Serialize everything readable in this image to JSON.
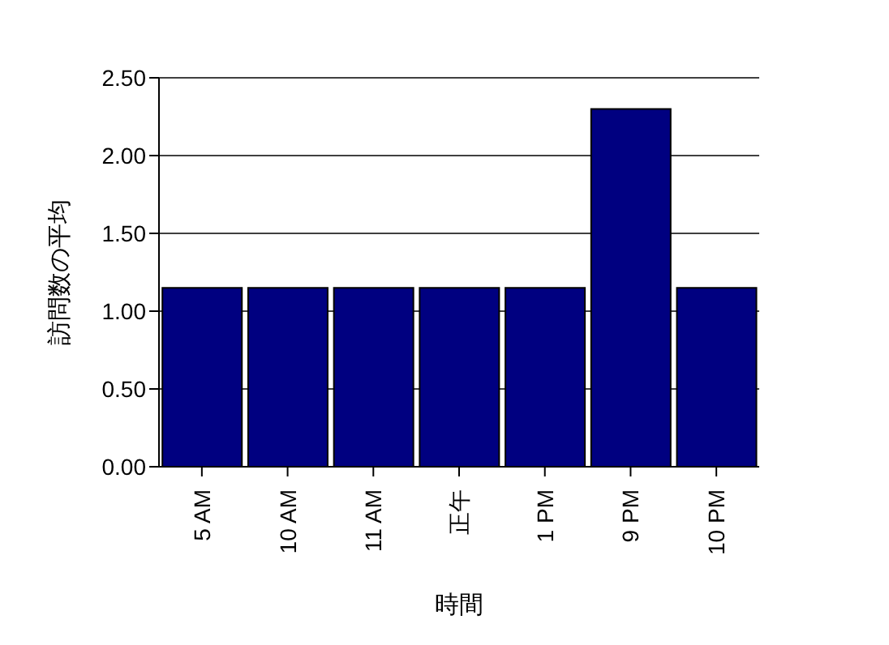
{
  "chart_data": {
    "type": "bar",
    "xlabel": "時間",
    "ylabel": "訪問数の平均",
    "categories": [
      "5 AM",
      "10 AM",
      "11 AM",
      "正午",
      "1 PM",
      "9 PM",
      "10 PM"
    ],
    "values": [
      1.15,
      1.15,
      1.15,
      1.15,
      1.15,
      2.3,
      1.15
    ],
    "color": "#000080",
    "ylim": [
      0,
      2.5
    ],
    "yticks": [
      {
        "value": 0,
        "label": "0.00"
      },
      {
        "value": 0.5,
        "label": "0.50"
      },
      {
        "value": 1,
        "label": "1.00"
      },
      {
        "value": 1.5,
        "label": "1.50"
      },
      {
        "value": 2,
        "label": "2.00"
      },
      {
        "value": 2.5,
        "label": "2.50"
      }
    ],
    "grid": "y",
    "legend": false
  }
}
